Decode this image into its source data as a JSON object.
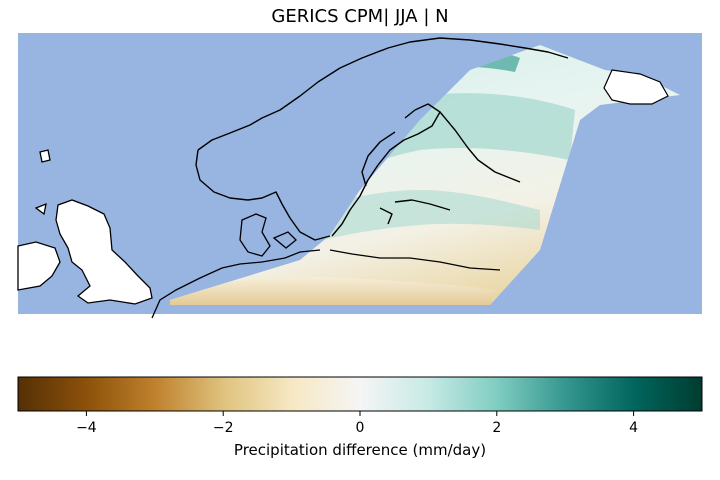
{
  "title": "GERICS CPM| JJA | N",
  "colorbar": {
    "label": "Precipitation difference (mm/day)",
    "min": -5,
    "max": 5,
    "ticks": [
      {
        "value": -4,
        "label": "−4"
      },
      {
        "value": -2,
        "label": "−2"
      },
      {
        "value": 0,
        "label": "0"
      },
      {
        "value": 2,
        "label": "2"
      },
      {
        "value": 4,
        "label": "4"
      }
    ],
    "colormap": "BrBG",
    "colors": [
      "#543005",
      "#8c510a",
      "#bf812d",
      "#dfc27d",
      "#f6e8c3",
      "#f5f5f5",
      "#c7eae5",
      "#80cdc1",
      "#35978f",
      "#01665e",
      "#003c30"
    ]
  },
  "map": {
    "ocean_color": "#98b5e2",
    "land_color": "#ffffff",
    "coastline_color": "#000000"
  }
}
